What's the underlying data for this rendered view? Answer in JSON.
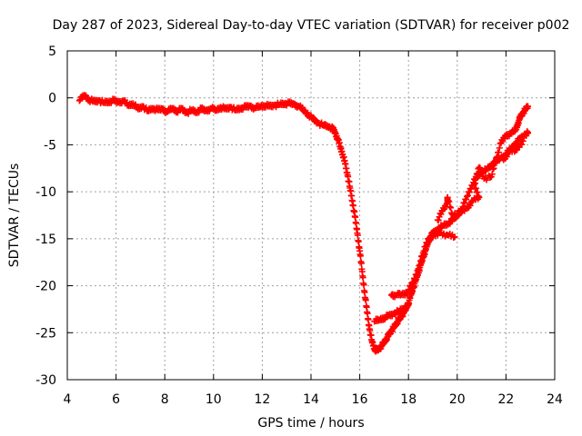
{
  "chart_data": {
    "type": "scatter",
    "title": "Day 287 of 2023, Sidereal Day-to-day VTEC variation (SDTVAR) for receiver p002",
    "xlabel": "GPS time / hours",
    "ylabel": "SDTVAR / TECUs",
    "xlim": [
      4,
      24
    ],
    "ylim": [
      -30,
      5
    ],
    "xticks": [
      4,
      6,
      8,
      10,
      12,
      14,
      16,
      18,
      20,
      22,
      24
    ],
    "yticks": [
      5,
      0,
      -5,
      -10,
      -15,
      -20,
      -25,
      -30
    ],
    "grid": true,
    "marker": "plus",
    "color": "#ff0000",
    "series": [
      {
        "name": "main",
        "points": [
          [
            4.5,
            -0.3
          ],
          [
            4.7,
            0.3
          ],
          [
            4.9,
            -0.2
          ],
          [
            5.1,
            -0.4
          ],
          [
            5.3,
            -0.3
          ],
          [
            5.5,
            -0.5
          ],
          [
            5.7,
            -0.4
          ],
          [
            5.9,
            -0.3
          ],
          [
            6.1,
            -0.5
          ],
          [
            6.3,
            -0.3
          ],
          [
            6.5,
            -0.8
          ],
          [
            6.7,
            -0.6
          ],
          [
            6.9,
            -1.2
          ],
          [
            7.1,
            -0.9
          ],
          [
            7.3,
            -1.4
          ],
          [
            7.5,
            -1.1
          ],
          [
            7.7,
            -1.3
          ],
          [
            7.9,
            -1.2
          ],
          [
            8.1,
            -1.5
          ],
          [
            8.3,
            -1.1
          ],
          [
            8.5,
            -1.4
          ],
          [
            8.7,
            -1.2
          ],
          [
            8.9,
            -1.6
          ],
          [
            9.1,
            -1.3
          ],
          [
            9.3,
            -1.5
          ],
          [
            9.5,
            -1.2
          ],
          [
            9.7,
            -1.4
          ],
          [
            9.9,
            -1.1
          ],
          [
            10.1,
            -1.3
          ],
          [
            10.3,
            -1.0
          ],
          [
            10.5,
            -1.2
          ],
          [
            10.7,
            -1.0
          ],
          [
            10.9,
            -1.3
          ],
          [
            11.1,
            -1.1
          ],
          [
            11.3,
            -1.0
          ],
          [
            11.5,
            -0.9
          ],
          [
            11.7,
            -1.1
          ],
          [
            11.9,
            -0.9
          ],
          [
            12.1,
            -0.8
          ],
          [
            12.3,
            -0.9
          ],
          [
            12.5,
            -0.8
          ],
          [
            12.7,
            -0.7
          ],
          [
            12.9,
            -0.6
          ],
          [
            13.1,
            -0.6
          ],
          [
            13.3,
            -0.7
          ],
          [
            13.5,
            -0.9
          ],
          [
            13.7,
            -1.3
          ],
          [
            13.9,
            -1.8
          ],
          [
            14.1,
            -2.3
          ],
          [
            14.3,
            -2.7
          ],
          [
            14.5,
            -2.9
          ],
          [
            14.7,
            -3.0
          ],
          [
            14.9,
            -3.3
          ],
          [
            15.0,
            -3.8
          ],
          [
            15.1,
            -4.4
          ],
          [
            15.2,
            -5.2
          ],
          [
            15.3,
            -6.0
          ],
          [
            15.4,
            -7.0
          ],
          [
            15.5,
            -8.2
          ],
          [
            15.6,
            -9.6
          ],
          [
            15.7,
            -11.0
          ],
          [
            15.8,
            -12.6
          ],
          [
            15.9,
            -14.4
          ],
          [
            16.0,
            -16.3
          ],
          [
            16.1,
            -18.5
          ],
          [
            16.2,
            -20.7
          ],
          [
            16.3,
            -22.8
          ],
          [
            16.4,
            -24.6
          ],
          [
            16.5,
            -25.9
          ],
          [
            16.6,
            -26.7
          ],
          [
            16.7,
            -26.9
          ],
          [
            16.8,
            -26.7
          ],
          [
            16.9,
            -26.4
          ],
          [
            17.0,
            -26.0
          ],
          [
            17.1,
            -25.6
          ],
          [
            17.2,
            -25.2
          ],
          [
            17.3,
            -24.8
          ],
          [
            17.4,
            -24.4
          ],
          [
            17.5,
            -24.0
          ],
          [
            17.6,
            -23.7
          ],
          [
            17.7,
            -23.3
          ],
          [
            17.8,
            -22.9
          ],
          [
            17.9,
            -22.4
          ],
          [
            18.0,
            -21.8
          ],
          [
            18.1,
            -21.0
          ],
          [
            18.2,
            -20.2
          ],
          [
            18.3,
            -19.4
          ],
          [
            18.4,
            -18.6
          ],
          [
            18.5,
            -17.8
          ],
          [
            18.6,
            -17.0
          ],
          [
            18.7,
            -16.2
          ],
          [
            18.8,
            -15.4
          ],
          [
            18.9,
            -14.8
          ],
          [
            19.0,
            -14.4
          ],
          [
            19.2,
            -14.0
          ],
          [
            19.4,
            -13.6
          ],
          [
            19.6,
            -13.4
          ],
          [
            19.8,
            -13.0
          ],
          [
            20.0,
            -12.6
          ],
          [
            20.2,
            -11.8
          ],
          [
            20.4,
            -10.5
          ],
          [
            20.6,
            -9.3
          ],
          [
            20.8,
            -8.4
          ],
          [
            21.0,
            -8.0
          ],
          [
            21.2,
            -7.6
          ],
          [
            21.4,
            -7.2
          ],
          [
            21.6,
            -6.8
          ],
          [
            21.8,
            -6.4
          ],
          [
            22.0,
            -6.0
          ],
          [
            22.2,
            -5.4
          ],
          [
            22.4,
            -4.8
          ],
          [
            22.6,
            -4.3
          ],
          [
            22.8,
            -3.9
          ],
          [
            22.9,
            -3.7
          ]
        ]
      },
      {
        "name": "upper-branch",
        "points": [
          [
            16.6,
            -23.8
          ],
          [
            16.8,
            -23.6
          ],
          [
            17.0,
            -23.4
          ],
          [
            17.2,
            -23.2
          ],
          [
            17.4,
            -23.0
          ],
          [
            17.6,
            -22.7
          ],
          [
            17.8,
            -22.4
          ],
          [
            18.0,
            -22.0
          ],
          [
            17.3,
            -21.0
          ],
          [
            17.5,
            -21.0
          ],
          [
            17.7,
            -20.9
          ],
          [
            17.9,
            -20.8
          ],
          [
            18.2,
            -19.6
          ],
          [
            18.4,
            -18.2
          ],
          [
            18.6,
            -16.5
          ],
          [
            18.8,
            -15.0
          ],
          [
            19.0,
            -14.8
          ],
          [
            19.3,
            -14.4
          ],
          [
            19.6,
            -14.6
          ],
          [
            19.9,
            -14.8
          ],
          [
            19.2,
            -13.0
          ],
          [
            19.4,
            -12.0
          ],
          [
            19.6,
            -11.2
          ],
          [
            19.6,
            -10.6
          ],
          [
            19.8,
            -12.4
          ],
          [
            20.1,
            -12.2
          ],
          [
            20.4,
            -11.8
          ],
          [
            20.6,
            -11.0
          ],
          [
            20.9,
            -10.6
          ],
          [
            20.7,
            -9.2
          ],
          [
            20.9,
            -7.4
          ],
          [
            21.1,
            -8.6
          ],
          [
            21.4,
            -8.4
          ],
          [
            21.6,
            -6.4
          ],
          [
            21.8,
            -4.8
          ],
          [
            22.0,
            -4.0
          ],
          [
            22.2,
            -3.8
          ],
          [
            22.4,
            -3.4
          ],
          [
            22.5,
            -2.6
          ],
          [
            22.6,
            -2.0
          ],
          [
            22.7,
            -1.6
          ],
          [
            22.8,
            -1.2
          ],
          [
            22.9,
            -0.9
          ],
          [
            21.5,
            -6.8
          ],
          [
            21.9,
            -6.6
          ],
          [
            22.1,
            -5.8
          ],
          [
            22.4,
            -5.6
          ],
          [
            22.7,
            -4.6
          ]
        ]
      }
    ]
  }
}
